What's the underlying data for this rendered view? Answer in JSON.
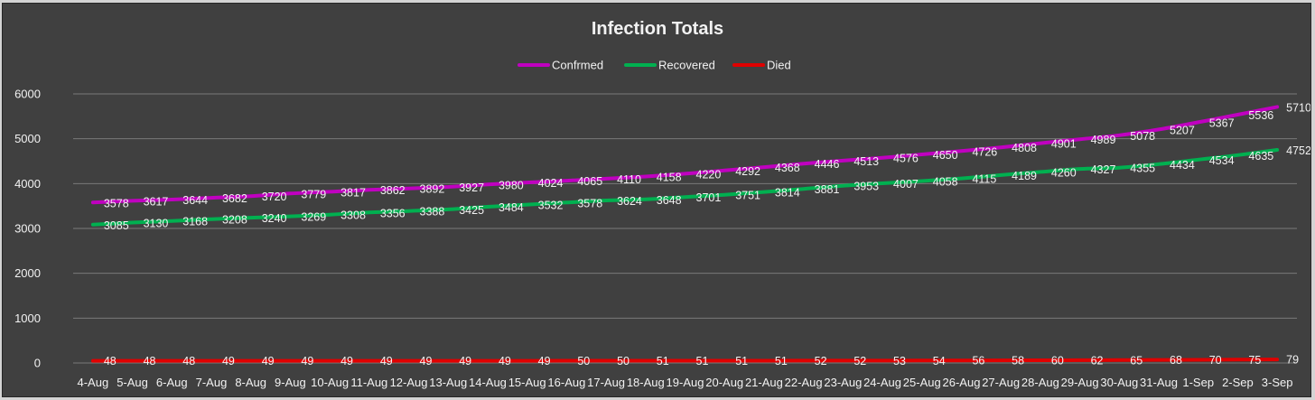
{
  "chart_data": {
    "type": "line",
    "title": "Infection Totals",
    "xlabel": "",
    "ylabel": "",
    "ylim": [
      0,
      6000
    ],
    "yticks": [
      0,
      1000,
      2000,
      3000,
      4000,
      5000,
      6000
    ],
    "grid": true,
    "legend_position": "top-center",
    "categories": [
      "4-Aug",
      "5-Aug",
      "6-Aug",
      "7-Aug",
      "8-Aug",
      "9-Aug",
      "10-Aug",
      "11-Aug",
      "12-Aug",
      "13-Aug",
      "14-Aug",
      "15-Aug",
      "16-Aug",
      "17-Aug",
      "18-Aug",
      "19-Aug",
      "20-Aug",
      "21-Aug",
      "22-Aug",
      "23-Aug",
      "24-Aug",
      "25-Aug",
      "26-Aug",
      "27-Aug",
      "28-Aug",
      "29-Aug",
      "30-Aug",
      "31-Aug",
      "1-Sep",
      "2-Sep",
      "3-Sep"
    ],
    "series": [
      {
        "name": "Confrmed",
        "color": "#c000c0",
        "values": [
          3578,
          3617,
          3644,
          3682,
          3720,
          3779,
          3817,
          3862,
          3892,
          3927,
          3980,
          4024,
          4065,
          4110,
          4158,
          4220,
          4292,
          4368,
          4446,
          4513,
          4576,
          4650,
          4726,
          4808,
          4901,
          4989,
          5078,
          5207,
          5367,
          5536,
          5710
        ]
      },
      {
        "name": "Recovered",
        "color": "#00b050",
        "values": [
          3085,
          3130,
          3168,
          3208,
          3240,
          3269,
          3308,
          3356,
          3388,
          3425,
          3484,
          3532,
          3578,
          3624,
          3648,
          3701,
          3751,
          3814,
          3881,
          3953,
          4007,
          4058,
          4115,
          4189,
          4260,
          4327,
          4355,
          4434,
          4534,
          4635,
          4752
        ]
      },
      {
        "name": "Died",
        "color": "#e00000",
        "values": [
          48,
          48,
          48,
          49,
          49,
          49,
          49,
          49,
          49,
          49,
          49,
          49,
          50,
          50,
          51,
          51,
          51,
          51,
          52,
          52,
          53,
          54,
          56,
          58,
          60,
          62,
          65,
          68,
          70,
          75,
          79
        ]
      }
    ]
  }
}
